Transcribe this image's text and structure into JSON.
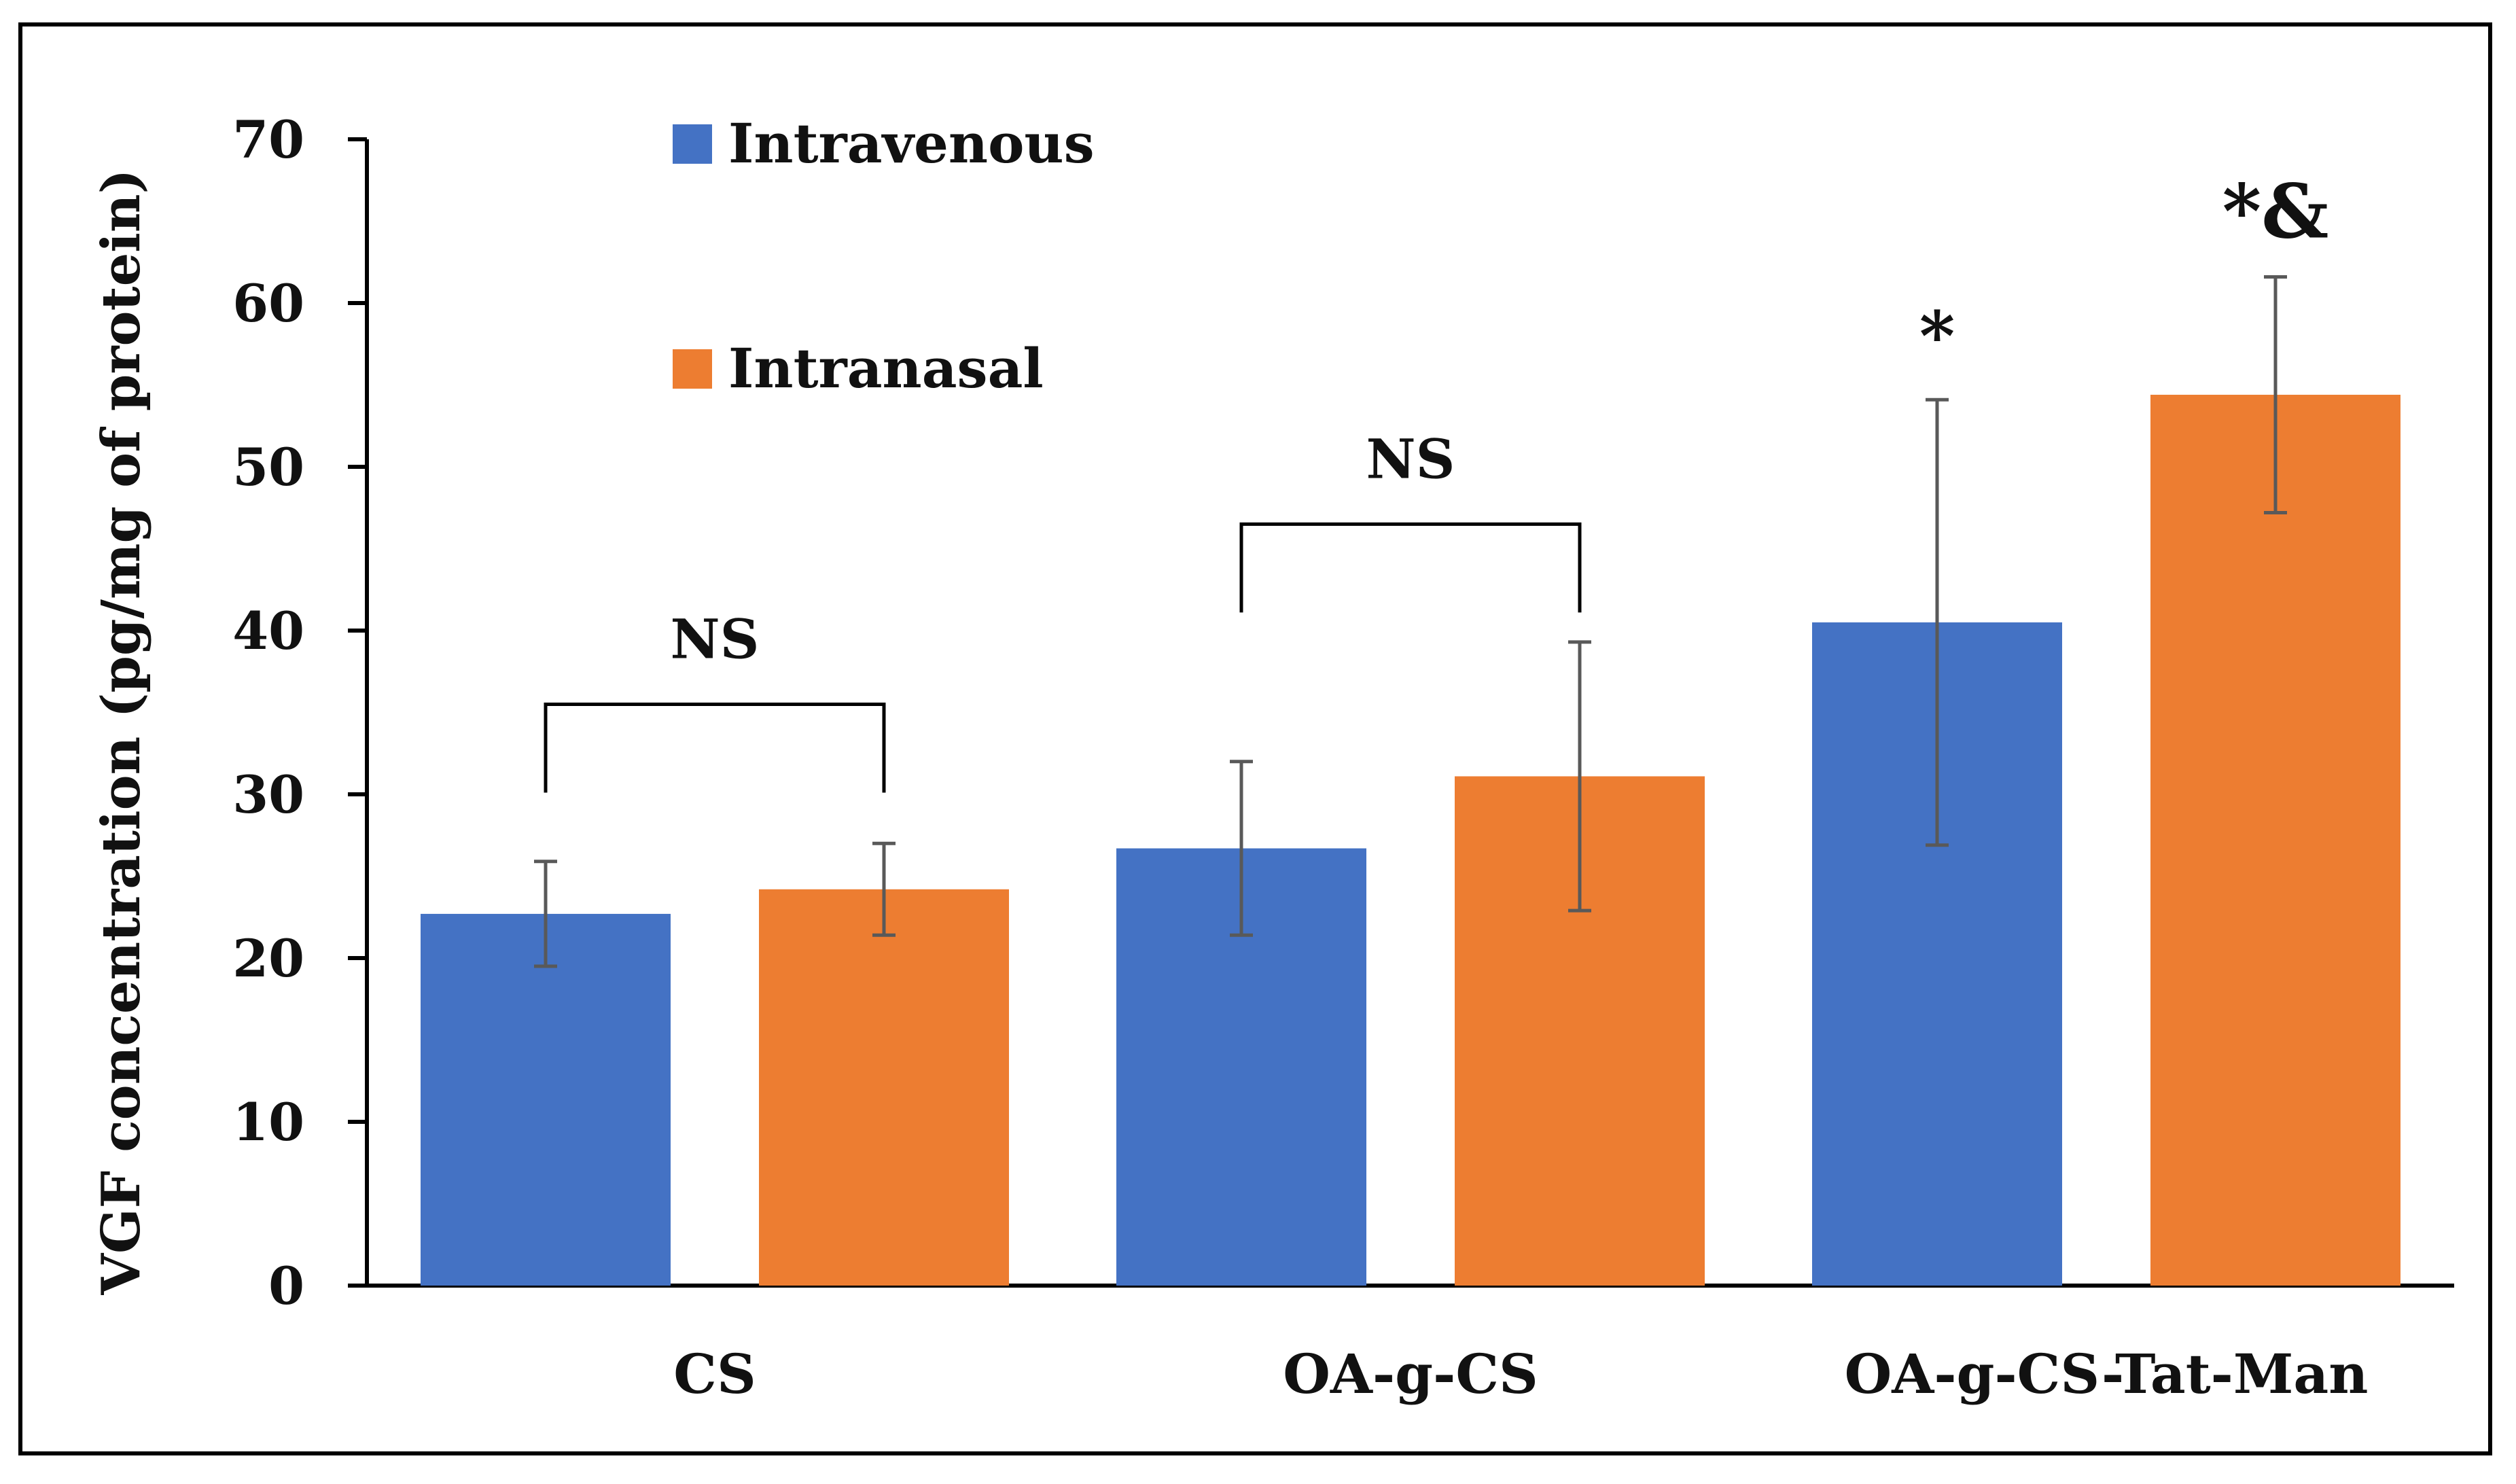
{
  "chart_data": {
    "type": "bar",
    "title": "",
    "xlabel": "",
    "ylabel": "VGF concentration (pg/mg of protein)",
    "ylim": [
      0,
      70
    ],
    "yticks": [
      0,
      10,
      20,
      30,
      40,
      50,
      60,
      70
    ],
    "grid": false,
    "legend_position": "top-left",
    "categories": [
      "CS",
      "OA-g-CS",
      "OA-g-CS-Tat-Man"
    ],
    "series": [
      {
        "name": "Intravenous",
        "color": "#4472C4",
        "values": [
          22.7,
          26.7,
          40.5
        ],
        "errors": [
          3.2,
          5.3,
          13.6
        ]
      },
      {
        "name": "Intranasal",
        "color": "#ED7D31",
        "values": [
          24.2,
          31.1,
          54.4
        ],
        "errors": [
          2.8,
          8.2,
          7.2
        ]
      }
    ],
    "annotations": [
      {
        "type": "bracket",
        "category": 0,
        "y": 35.5,
        "label": "NS"
      },
      {
        "type": "bracket",
        "category": 1,
        "y": 46.5,
        "label": "NS"
      },
      {
        "type": "marker",
        "category": 2,
        "series": 0,
        "label": "*"
      },
      {
        "type": "marker",
        "category": 2,
        "series": 1,
        "label": "*&"
      }
    ]
  }
}
